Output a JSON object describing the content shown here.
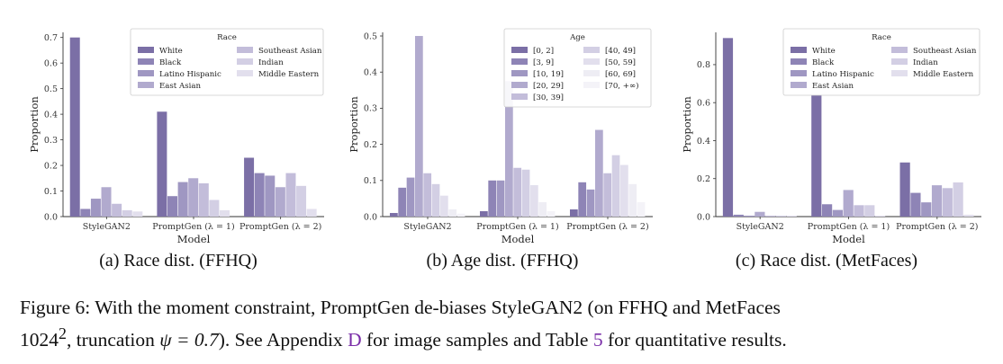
{
  "colors": {
    "palette": [
      "#7b6fa6",
      "#8e84b6",
      "#9f97c2",
      "#b1aace",
      "#c3bdda",
      "#d3cfe4",
      "#e2dfed",
      "#eeedf4",
      "#f4f3f8"
    ]
  },
  "figure_caption": {
    "prefix": "Figure 6:",
    "part1": "With the moment constraint, PromptGen de-biases StyleGAN2 (on FFHQ and MetFaces",
    "part2_pre": "1024",
    "sup": "2",
    "part2_mid": ", truncation ",
    "psi": "ψ = 0.7",
    "part2_b": "). See Appendix ",
    "link1": "D",
    "part2_c": " for image samples and Table ",
    "link2": "5",
    "part2_d": " for quantitative results."
  },
  "chart_data": [
    {
      "type": "bar",
      "subcaption": "(a)  Race dist. (FFHQ)",
      "xlabel": "Model",
      "ylabel": "Proportion",
      "ylim": [
        0,
        0.72
      ],
      "yticks": [
        0.0,
        0.1,
        0.2,
        0.3,
        0.4,
        0.5,
        0.6,
        0.7
      ],
      "ytick_labels": [
        "0.0",
        "0.1",
        "0.2",
        "0.3",
        "0.4",
        "0.5",
        "0.6",
        "0.7"
      ],
      "categories": [
        "StyleGAN2",
        "PromptGen (λ = 1)",
        "PromptGen (λ = 2)"
      ],
      "legend_title": "Race",
      "legend_columns": 2,
      "legend_placement": "top-right",
      "series": [
        {
          "name": "White",
          "values": [
            0.7,
            0.41,
            0.23
          ]
        },
        {
          "name": "Black",
          "values": [
            0.03,
            0.08,
            0.17
          ]
        },
        {
          "name": "Latino Hispanic",
          "values": [
            0.07,
            0.135,
            0.16
          ]
        },
        {
          "name": "East Asian",
          "values": [
            0.115,
            0.15,
            0.115
          ]
        },
        {
          "name": "Southeast Asian",
          "values": [
            0.05,
            0.13,
            0.17
          ]
        },
        {
          "name": "Indian",
          "values": [
            0.025,
            0.065,
            0.12
          ]
        },
        {
          "name": "Middle Eastern",
          "values": [
            0.02,
            0.025,
            0.03
          ]
        }
      ]
    },
    {
      "type": "bar",
      "subcaption": "(b)  Age dist. (FFHQ)",
      "xlabel": "Model",
      "ylabel": "Proportion",
      "ylim": [
        0,
        0.51
      ],
      "yticks": [
        0.0,
        0.1,
        0.2,
        0.3,
        0.4,
        0.5
      ],
      "ytick_labels": [
        "0.0",
        "0.1",
        "0.2",
        "0.3",
        "0.4",
        "0.5"
      ],
      "categories": [
        "StyleGAN2",
        "PromptGen (λ = 1)",
        "PromptGen (λ = 2)"
      ],
      "legend_title": "Age",
      "legend_columns": 2,
      "legend_placement": "top-right",
      "series": [
        {
          "name": "[0, 2]",
          "values": [
            0.01,
            0.015,
            0.02
          ]
        },
        {
          "name": "[3, 9]",
          "values": [
            0.08,
            0.1,
            0.095
          ]
        },
        {
          "name": "[10, 19]",
          "values": [
            0.108,
            0.1,
            0.075
          ]
        },
        {
          "name": "[20, 29]",
          "values": [
            0.5,
            0.375,
            0.24
          ]
        },
        {
          "name": "[30, 39]",
          "values": [
            0.12,
            0.135,
            0.12
          ]
        },
        {
          "name": "[40, 49]",
          "values": [
            0.09,
            0.13,
            0.17
          ]
        },
        {
          "name": "[50, 59]",
          "values": [
            0.058,
            0.087,
            0.143
          ]
        },
        {
          "name": "[60, 69]",
          "values": [
            0.02,
            0.04,
            0.09
          ]
        },
        {
          "name": "[70, +∞)",
          "values": [
            0.008,
            0.015,
            0.04
          ]
        }
      ]
    },
    {
      "type": "bar",
      "subcaption": "(c)  Race dist. (MetFaces)",
      "xlabel": "Model",
      "ylabel": "Proportion",
      "ylim": [
        0,
        0.97
      ],
      "yticks": [
        0.0,
        0.2,
        0.4,
        0.6,
        0.8
      ],
      "ytick_labels": [
        "0.0",
        "0.2",
        "0.4",
        "0.6",
        "0.8"
      ],
      "categories": [
        "StyleGAN2",
        "PromptGen (λ = 1)",
        "PromptGen (λ = 2)"
      ],
      "legend_title": "Race",
      "legend_columns": 2,
      "legend_placement": "top-right",
      "series": [
        {
          "name": "White",
          "values": [
            0.94,
            0.64,
            0.285
          ]
        },
        {
          "name": "Black",
          "values": [
            0.01,
            0.065,
            0.125
          ]
        },
        {
          "name": "Latino Hispanic",
          "values": [
            0.005,
            0.035,
            0.075
          ]
        },
        {
          "name": "East Asian",
          "values": [
            0.025,
            0.14,
            0.165
          ]
        },
        {
          "name": "Southeast Asian",
          "values": [
            0.005,
            0.06,
            0.15
          ]
        },
        {
          "name": "Indian",
          "values": [
            0.005,
            0.06,
            0.18
          ]
        },
        {
          "name": "Middle Eastern",
          "values": [
            0.005,
            0.005,
            0.01
          ]
        }
      ]
    }
  ]
}
